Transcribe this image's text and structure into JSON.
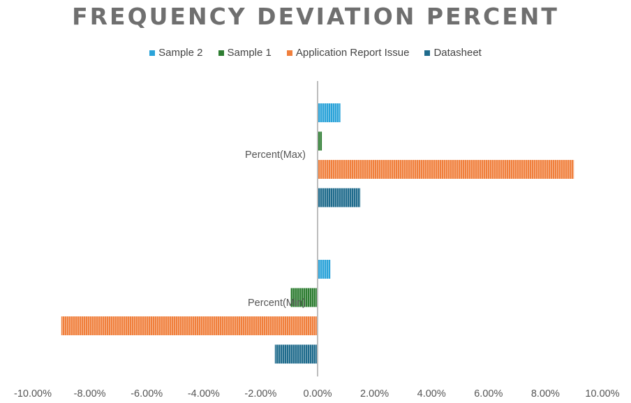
{
  "chart_data": {
    "type": "bar",
    "orientation": "horizontal",
    "title": "FREQUENCY DEVIATION PERCENT",
    "legend_position": "top",
    "categories": [
      "Percent(Max)",
      "Percent(Min)"
    ],
    "series": [
      {
        "name": "Sample 2",
        "color": "#2aa3d9",
        "values": [
          0.8,
          0.45
        ]
      },
      {
        "name": "Sample 1",
        "color": "#2e7d32",
        "values": [
          0.15,
          -0.95
        ]
      },
      {
        "name": "Application Report Issue",
        "color": "#f07f3c",
        "values": [
          9.0,
          -9.0
        ]
      },
      {
        "name": "Datasheet",
        "color": "#1f6b8c",
        "values": [
          1.5,
          -1.5
        ]
      }
    ],
    "xlim": [
      -10,
      10
    ],
    "x_ticks": [
      -10,
      -8,
      -6,
      -4,
      -2,
      0,
      2,
      4,
      6,
      8,
      10
    ],
    "x_tick_labels": [
      "-10.00%",
      "-8.00%",
      "-6.00%",
      "-4.00%",
      "-2.00%",
      "0.00%",
      "2.00%",
      "4.00%",
      "6.00%",
      "8.00%",
      "10.00%"
    ],
    "grid": false
  }
}
